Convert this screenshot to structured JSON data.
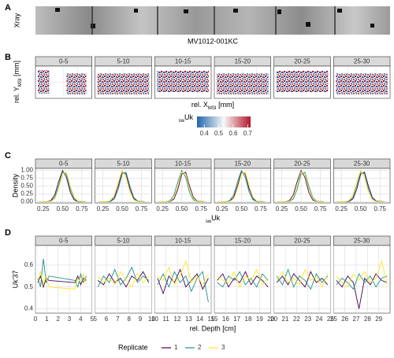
{
  "chart_data": [
    {
      "type": "image",
      "label": "A",
      "ylabel": "Xray",
      "caption": "MV1012-001KC"
    },
    {
      "type": "heatmap",
      "label": "B",
      "facets": [
        "0-5",
        "5-10",
        "10-15",
        "15-20",
        "20-25",
        "25-30"
      ],
      "ylabel": [
        {
          "text": "rel. Y"
        },
        {
          "text": "MSI",
          "sub": true
        },
        {
          "text": " [mm]"
        }
      ],
      "xlabel": [
        {
          "text": "rel. X"
        },
        {
          "text": "MSI",
          "sub": true
        },
        {
          "text": " [mm]"
        }
      ],
      "colorbar": {
        "title": [
          {
            "text": "sw",
            "sub": true
          },
          {
            "text": "Uk"
          }
        ],
        "lim": [
          0.35,
          0.72
        ],
        "ticks": [
          0.4,
          0.5,
          0.6,
          0.7
        ],
        "colors": [
          "#2166ac",
          "#f7f7f7",
          "#b2182b"
        ]
      }
    },
    {
      "type": "line",
      "label": "C",
      "ylabel": "Density",
      "xlabel": [
        {
          "text": "sw",
          "sub": true
        },
        {
          "text": "Uk"
        }
      ],
      "xlim": [
        0.15,
        0.88
      ],
      "xticks": [
        0.25,
        {
          "value": 0.5,
          "label": "0.50"
        },
        0.75
      ],
      "ylim": [
        -0.04,
        1.06
      ],
      "yticks": [
        {
          "value": 0,
          "label": "0.00"
        },
        0.25,
        {
          "value": 0.5,
          "label": "0.50"
        },
        0.75,
        {
          "value": 1,
          "label": "1.00"
        }
      ],
      "colors": [
        "#440154",
        "#21908c",
        "#fde725"
      ],
      "x": [
        0.2,
        0.3,
        0.35,
        0.4,
        0.45,
        0.5,
        0.55,
        0.6,
        0.65,
        0.7,
        0.8
      ],
      "facets": [
        {
          "name": "0-5",
          "values": [
            [
              0,
              0.003,
              0.04,
              0.22,
              0.64,
              0.99,
              0.78,
              0.3,
              0.06,
              0.005,
              0
            ],
            [
              0,
              0.001,
              0.02,
              0.14,
              0.51,
              0.95,
              0.88,
              0.41,
              0.1,
              0.01,
              0
            ],
            [
              0,
              0.001,
              0.01,
              0.09,
              0.4,
              0.88,
              0.94,
              0.5,
              0.14,
              0.02,
              0
            ]
          ]
        },
        {
          "name": "5-10",
          "values": [
            [
              0,
              0.001,
              0.02,
              0.14,
              0.51,
              0.95,
              0.88,
              0.41,
              0.1,
              0.01,
              0
            ],
            [
              0,
              0.001,
              0.01,
              0.09,
              0.4,
              0.88,
              0.94,
              0.5,
              0.14,
              0.02,
              0
            ],
            [
              0,
              0.003,
              0.04,
              0.22,
              0.64,
              0.99,
              0.78,
              0.3,
              0.06,
              0.005,
              0
            ]
          ]
        },
        {
          "name": "10-15",
          "values": [
            [
              0,
              0.001,
              0.01,
              0.09,
              0.4,
              0.88,
              0.94,
              0.5,
              0.14,
              0.02,
              0
            ],
            [
              0,
              0.003,
              0.04,
              0.22,
              0.64,
              0.99,
              0.78,
              0.3,
              0.06,
              0.005,
              0
            ],
            [
              0,
              0.001,
              0.02,
              0.14,
              0.51,
              0.95,
              0.88,
              0.41,
              0.1,
              0.01,
              0
            ]
          ]
        },
        {
          "name": "15-20",
          "values": [
            [
              0,
              0.001,
              0.02,
              0.14,
              0.51,
              0.95,
              0.88,
              0.41,
              0.1,
              0.01,
              0
            ],
            [
              0,
              0.003,
              0.04,
              0.22,
              0.64,
              0.99,
              0.78,
              0.3,
              0.06,
              0.005,
              0
            ],
            [
              0,
              0.001,
              0.01,
              0.09,
              0.4,
              0.88,
              0.94,
              0.5,
              0.14,
              0.02,
              0
            ]
          ]
        },
        {
          "name": "20-25",
          "values": [
            [
              0,
              0.003,
              0.04,
              0.22,
              0.64,
              0.99,
              0.78,
              0.3,
              0.06,
              0.005,
              0
            ],
            [
              0,
              0.001,
              0.01,
              0.09,
              0.4,
              0.88,
              0.94,
              0.5,
              0.14,
              0.02,
              0
            ],
            [
              0,
              0.001,
              0.02,
              0.14,
              0.51,
              0.95,
              0.88,
              0.41,
              0.1,
              0.01,
              0
            ]
          ]
        },
        {
          "name": "25-30",
          "values": [
            [
              0,
              0.001,
              0.01,
              0.09,
              0.4,
              0.88,
              0.94,
              0.5,
              0.14,
              0.02,
              0
            ],
            [
              0,
              0.001,
              0.02,
              0.14,
              0.51,
              0.95,
              0.88,
              0.41,
              0.1,
              0.01,
              0
            ],
            [
              0,
              0.003,
              0.04,
              0.22,
              0.64,
              0.99,
              0.78,
              0.3,
              0.06,
              0.005,
              0
            ]
          ]
        }
      ]
    },
    {
      "type": "line",
      "label": "D",
      "ylabel": "Uk'37",
      "xlabel": "rel. Depth [cm]",
      "ylim": [
        0.38,
        0.69
      ],
      "yticks": [
        0.4,
        0.5,
        0.6
      ],
      "legend": {
        "title": "Replicate",
        "position": "bottom"
      },
      "series": [
        {
          "name": "1",
          "color": "#440154"
        },
        {
          "name": "2",
          "color": "#21908c"
        },
        {
          "name": "3",
          "color": "#fde725"
        }
      ],
      "facets": [
        {
          "name": "0-5",
          "xlim": [
            0,
            5
          ],
          "xticks": [
            0,
            1,
            2,
            3,
            4,
            5
          ],
          "x": [
            0.2,
            0.45,
            0.7,
            0.95,
            1.2,
            3.5,
            3.75,
            4.0,
            4.25,
            4.5
          ],
          "values": [
            [
              0.52,
              0.55,
              0.5,
              0.54,
              0.53,
              0.52,
              0.55,
              0.51,
              0.54,
              0.53
            ],
            [
              0.54,
              0.5,
              0.63,
              0.52,
              0.55,
              0.53,
              0.5,
              0.56,
              0.52,
              0.55
            ],
            [
              0.53,
              0.57,
              0.51,
              0.55,
              0.5,
              0.49,
              0.54,
              0.52,
              0.56,
              0.51
            ]
          ]
        },
        {
          "name": "5-10",
          "xlim": [
            5,
            10
          ],
          "xticks": [
            5,
            6,
            7,
            8,
            9,
            10
          ],
          "x": [
            5.25,
            5.75,
            6.25,
            6.75,
            7.25,
            7.75,
            8.25,
            8.75,
            9.25,
            9.75
          ],
          "values": [
            [
              0.53,
              0.51,
              0.56,
              0.52,
              0.54,
              0.5,
              0.55,
              0.53,
              0.57,
              0.52
            ],
            [
              0.5,
              0.55,
              0.52,
              0.58,
              0.51,
              0.54,
              0.59,
              0.52,
              0.55,
              0.53
            ],
            [
              0.55,
              0.52,
              0.54,
              0.51,
              0.57,
              0.53,
              0.5,
              0.56,
              0.52,
              0.55
            ]
          ]
        },
        {
          "name": "10-15",
          "xlim": [
            10,
            15
          ],
          "xticks": [
            10,
            11,
            12,
            13,
            14,
            15
          ],
          "x": [
            10.25,
            10.75,
            11.25,
            11.75,
            12.25,
            12.75,
            13.25,
            13.75,
            14.25,
            14.75
          ],
          "values": [
            [
              0.54,
              0.47,
              0.55,
              0.52,
              0.58,
              0.5,
              0.53,
              0.56,
              0.49,
              0.54
            ],
            [
              0.51,
              0.56,
              0.5,
              0.57,
              0.52,
              0.55,
              0.48,
              0.54,
              0.57,
              0.43
            ],
            [
              0.55,
              0.53,
              0.59,
              0.51,
              0.55,
              0.62,
              0.52,
              0.55,
              0.51,
              0.56
            ]
          ]
        },
        {
          "name": "15-20",
          "xlim": [
            15,
            20
          ],
          "xticks": [
            15,
            16,
            17,
            18,
            19,
            20
          ],
          "x": [
            15.25,
            15.75,
            16.25,
            16.75,
            17.25,
            17.75,
            18.25,
            18.75,
            19.25,
            19.75
          ],
          "values": [
            [
              0.53,
              0.56,
              0.5,
              0.54,
              0.52,
              0.57,
              0.51,
              0.55,
              0.53,
              0.5
            ],
            [
              0.52,
              0.5,
              0.55,
              0.53,
              0.57,
              0.51,
              0.54,
              0.5,
              0.56,
              0.53
            ],
            [
              0.55,
              0.53,
              0.52,
              0.57,
              0.5,
              0.55,
              0.53,
              0.58,
              0.51,
              0.54
            ]
          ]
        },
        {
          "name": "20-25",
          "xlim": [
            20,
            25
          ],
          "xticks": [
            20,
            21,
            22,
            23,
            24,
            25
          ],
          "x": [
            20.25,
            20.75,
            21.25,
            21.75,
            22.25,
            22.75,
            23.25,
            23.75,
            24.25,
            24.75
          ],
          "values": [
            [
              0.52,
              0.55,
              0.51,
              0.56,
              0.53,
              0.5,
              0.57,
              0.52,
              0.54,
              0.51
            ],
            [
              0.55,
              0.51,
              0.58,
              0.5,
              0.55,
              0.53,
              0.49,
              0.56,
              0.52,
              0.55
            ],
            [
              0.53,
              0.57,
              0.52,
              0.54,
              0.51,
              0.58,
              0.53,
              0.55,
              0.5,
              0.56
            ]
          ]
        },
        {
          "name": "25-30",
          "xlim": [
            25,
            30
          ],
          "xticks": [
            25,
            26,
            27,
            28,
            29
          ],
          "x": [
            25.25,
            25.75,
            26.25,
            26.75,
            27.25,
            27.75,
            28.25,
            28.75,
            29.25,
            29.75
          ],
          "values": [
            [
              0.53,
              0.5,
              0.55,
              0.52,
              0.4,
              0.54,
              0.51,
              0.56,
              0.53,
              0.52
            ],
            [
              0.51,
              0.54,
              0.52,
              0.49,
              0.56,
              0.52,
              0.55,
              0.5,
              0.54,
              0.55
            ],
            [
              0.55,
              0.52,
              0.5,
              0.56,
              0.53,
              0.57,
              0.52,
              0.54,
              0.62,
              0.51
            ]
          ]
        }
      ]
    }
  ]
}
